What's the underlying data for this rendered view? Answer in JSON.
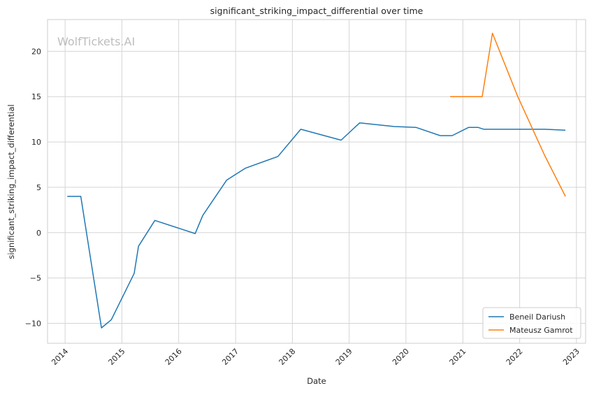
{
  "chart_data": {
    "type": "line",
    "title": "significant_striking_impact_differential over time",
    "xlabel": "Date",
    "ylabel": "significant_striking_impact_differential",
    "watermark": "WolfTickets.AI",
    "xlim": [
      "2013-09-10",
      "2023-03-01"
    ],
    "ylim": [
      -12.2,
      23.5
    ],
    "x_ticks": [
      "2014-01-01",
      "2015-01-01",
      "2016-01-01",
      "2017-01-01",
      "2018-01-01",
      "2019-01-01",
      "2020-01-01",
      "2021-01-01",
      "2022-01-01",
      "2023-01-01"
    ],
    "x_tick_labels": [
      "2014",
      "2015",
      "2016",
      "2017",
      "2018",
      "2019",
      "2020",
      "2021",
      "2022",
      "2023"
    ],
    "y_ticks": [
      -10,
      -5,
      0,
      5,
      10,
      15,
      20
    ],
    "y_tick_labels": [
      "−10",
      "−5",
      "0",
      "5",
      "10",
      "15",
      "20"
    ],
    "grid": true,
    "legend_position": "bottom-right",
    "series": [
      {
        "name": "Beneil Dariush",
        "color": "#1f77b4",
        "x": [
          "2014-01-15",
          "2014-04-12",
          "2014-08-23",
          "2014-10-25",
          "2015-03-21",
          "2015-04-18",
          "2015-08-01",
          "2016-04-16",
          "2016-06-04",
          "2016-11-05",
          "2017-03-04",
          "2017-09-30",
          "2018-02-24",
          "2018-11-10",
          "2019-03-09",
          "2019-10-18",
          "2020-03-07",
          "2020-08-08",
          "2020-10-24",
          "2021-02-06",
          "2021-04-10",
          "2021-05-15",
          "2022-06-11",
          "2022-10-22"
        ],
        "y": [
          4.0,
          4.0,
          -10.5,
          -9.6,
          -4.5,
          -1.5,
          1.35,
          -0.1,
          1.9,
          5.8,
          7.1,
          8.4,
          11.4,
          10.2,
          12.1,
          11.7,
          11.6,
          10.7,
          10.7,
          11.6,
          11.6,
          11.4,
          11.4,
          11.3
        ]
      },
      {
        "name": "Mateusz Gamrot",
        "color": "#ff7f0e",
        "x": [
          "2020-10-11",
          "2021-05-05",
          "2021-07-10",
          "2021-12-20",
          "2022-06-11",
          "2022-10-22"
        ],
        "y": [
          15.0,
          15.0,
          22.0,
          15.0,
          8.5,
          4.0
        ]
      }
    ]
  }
}
